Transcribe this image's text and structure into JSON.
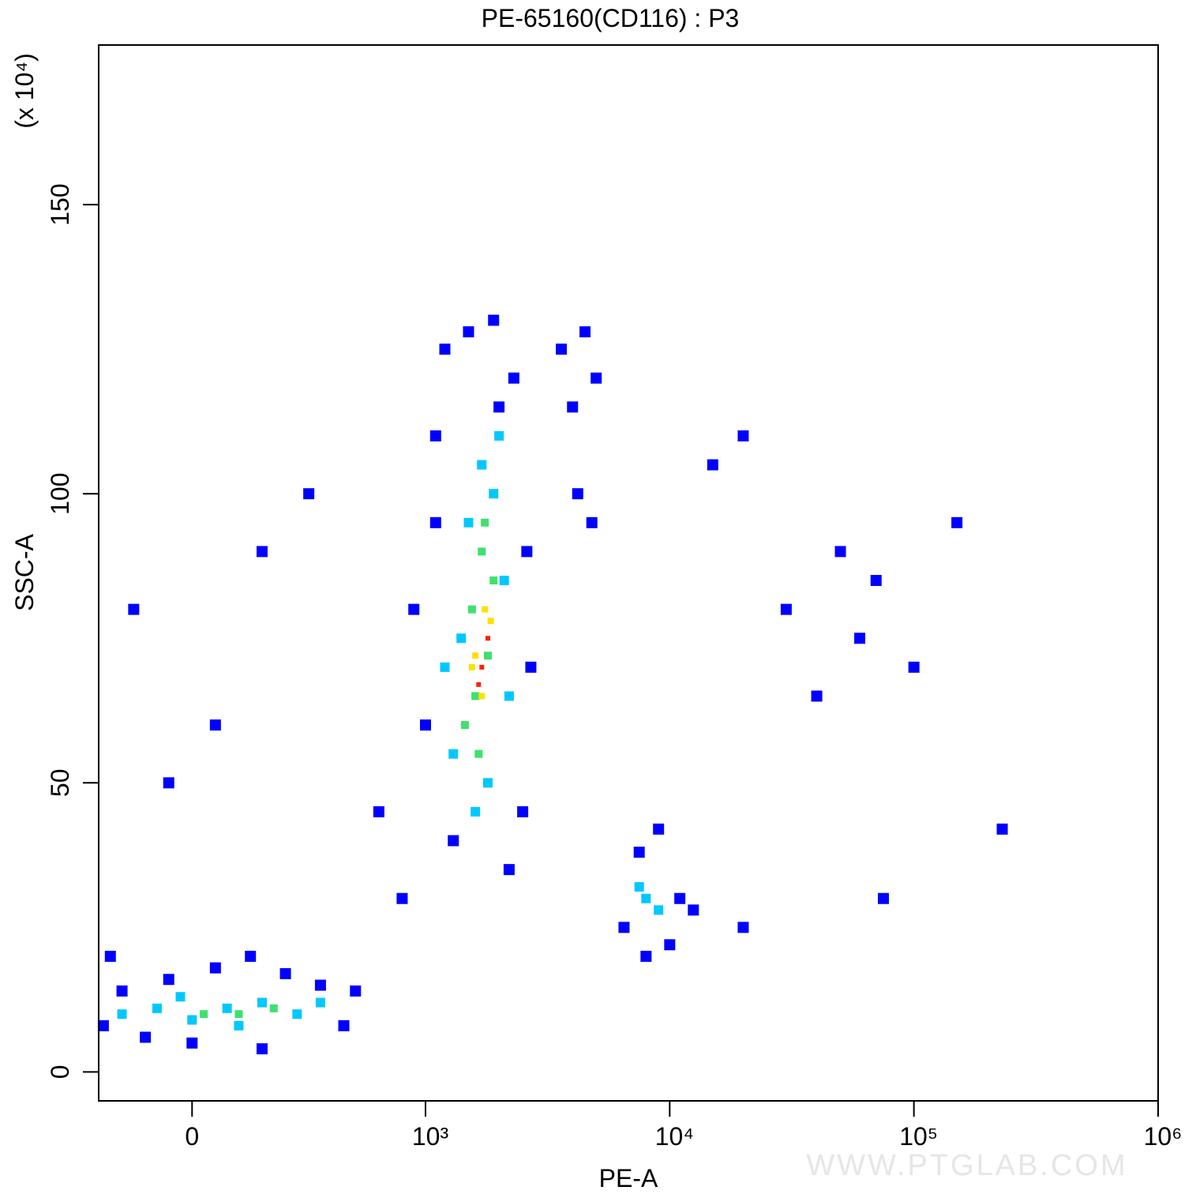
{
  "chart_data": {
    "type": "scatter",
    "title": "PE-65160(CD116) : P3",
    "x_label": "PE-A",
    "y_label": "SSC-A",
    "y_unit": "(x 10⁴)",
    "watermark": "WWW.PTGLAB.COM",
    "xscale": "biexponential",
    "xlim": [
      -400,
      1000000
    ],
    "xticks": [
      0,
      {
        "value": 1000,
        "label": "10³"
      },
      {
        "value": 10000,
        "label": "10⁴"
      },
      {
        "value": 100000,
        "label": "10⁵"
      },
      {
        "value": 1000000,
        "label": "10⁶"
      }
    ],
    "ylim": [
      -5,
      177.6
    ],
    "yticks": [
      0,
      50,
      100,
      150
    ],
    "series": [
      {
        "color": "#0000ff",
        "x": [
          -380,
          -300,
          -200,
          -100,
          0,
          100,
          250,
          400,
          550,
          650,
          700,
          -350,
          300,
          900,
          800,
          1000,
          950,
          1100,
          1200,
          1500,
          1900,
          2300,
          2600,
          2700,
          2500,
          2200,
          1300,
          1100,
          2000,
          3600,
          4000,
          4500,
          5000,
          4200,
          4800,
          6500,
          7500,
          9000,
          11000,
          12500,
          8000,
          10000,
          -250,
          -100,
          100,
          300,
          500,
          15000,
          20000,
          30000,
          50000,
          70000,
          100000,
          150000,
          230000,
          75000,
          40000,
          20000,
          60000
        ],
        "values": [
          8,
          14,
          6,
          16,
          5,
          18,
          20,
          17,
          15,
          8,
          14,
          20,
          4,
          30,
          45,
          60,
          80,
          110,
          125,
          128,
          130,
          120,
          90,
          70,
          45,
          35,
          40,
          95,
          115,
          125,
          115,
          128,
          120,
          100,
          95,
          25,
          38,
          42,
          30,
          28,
          20,
          22,
          80,
          50,
          60,
          90,
          100,
          105,
          110,
          80,
          90,
          85,
          70,
          95,
          42,
          30,
          65,
          25,
          75
        ]
      },
      {
        "color": "#00c8ff",
        "x": [
          -300,
          -150,
          0,
          150,
          300,
          450,
          550,
          -50,
          200,
          1300,
          1400,
          1500,
          1700,
          1900,
          2100,
          2200,
          1600,
          1800,
          2000,
          1200,
          8000,
          9000,
          7500
        ],
        "values": [
          10,
          11,
          9,
          11,
          12,
          10,
          12,
          13,
          8,
          55,
          75,
          95,
          105,
          100,
          85,
          65,
          45,
          50,
          110,
          70,
          30,
          28,
          32
        ]
      },
      {
        "color": "#40e070",
        "x": [
          1450,
          1550,
          1700,
          1900,
          1600,
          1800,
          1650,
          200,
          350,
          50,
          1750
        ],
        "values": [
          60,
          80,
          90,
          85,
          65,
          72,
          55,
          10,
          11,
          10,
          95
        ]
      },
      {
        "color": "#ffe000",
        "x": [
          1600,
          1750,
          1700,
          1850,
          1550
        ],
        "values": [
          72,
          80,
          65,
          78,
          70
        ]
      },
      {
        "color": "#ff2000",
        "x": [
          1700,
          1800,
          1650
        ],
        "values": [
          70,
          75,
          67
        ]
      }
    ]
  }
}
